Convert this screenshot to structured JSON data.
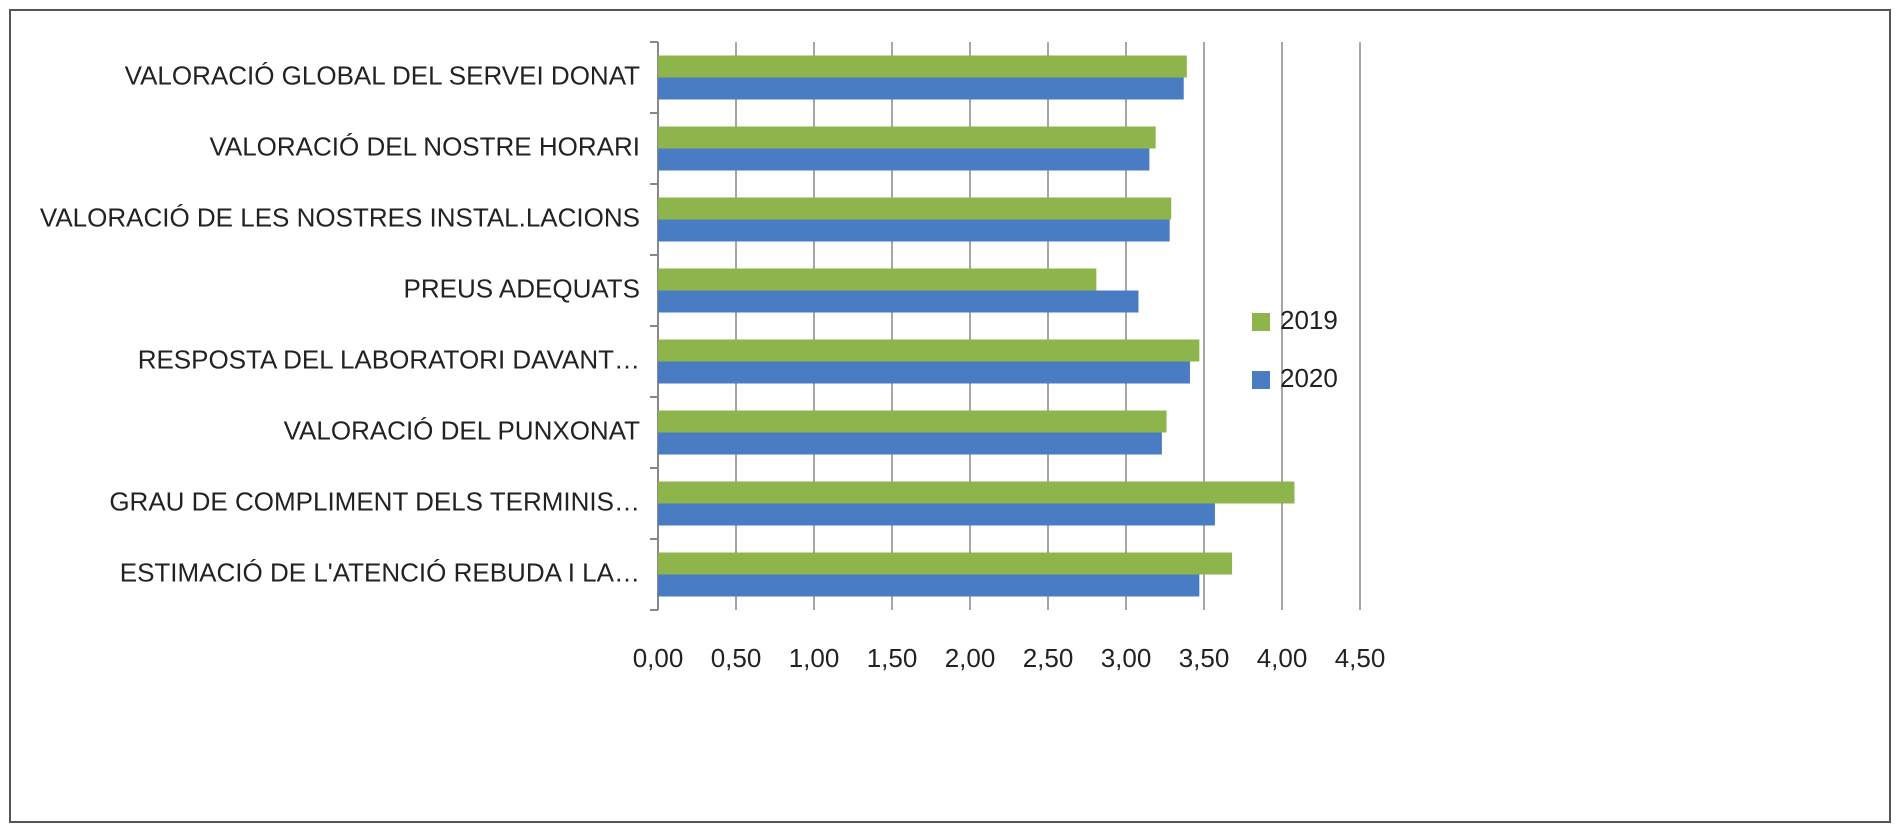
{
  "chart_data": {
    "type": "barh",
    "categories": [
      "VALORACIÓ GLOBAL DEL SERVEI DONAT",
      "VALORACIÓ DEL NOSTRE HORARI",
      "VALORACIÓ DE LES NOSTRES INSTAL.LACIONS",
      "PREUS ADEQUATS",
      "RESPOSTA DEL LABORATORI DAVANT…",
      "VALORACIÓ DEL PUNXONAT",
      "GRAU DE COMPLIMENT DELS TERMINIS…",
      "ESTIMACIÓ DE L'ATENCIÓ REBUDA I LA…"
    ],
    "series": [
      {
        "name": "2019",
        "color": "#8db54b",
        "values": [
          3.39,
          3.19,
          3.29,
          2.81,
          3.47,
          3.26,
          4.08,
          3.68
        ]
      },
      {
        "name": "2020",
        "color": "#4a7cc4",
        "values": [
          3.37,
          3.15,
          3.28,
          3.08,
          3.41,
          3.23,
          3.57,
          3.47
        ]
      }
    ],
    "xlim": [
      0,
      4.5
    ],
    "xticks": [
      {
        "value": 0,
        "label": "0,00"
      },
      {
        "value": 0.5,
        "label": "0,50"
      },
      {
        "value": 1,
        "label": "1,00"
      },
      {
        "value": 1.5,
        "label": "1,50"
      },
      {
        "value": 2,
        "label": "2,00"
      },
      {
        "value": 2.5,
        "label": "2,50"
      },
      {
        "value": 3,
        "label": "3,00"
      },
      {
        "value": 3.5,
        "label": "3,50"
      },
      {
        "value": 4,
        "label": "4,00"
      },
      {
        "value": 4.5,
        "label": "4,50"
      }
    ],
    "grid": true,
    "legend": "right"
  }
}
